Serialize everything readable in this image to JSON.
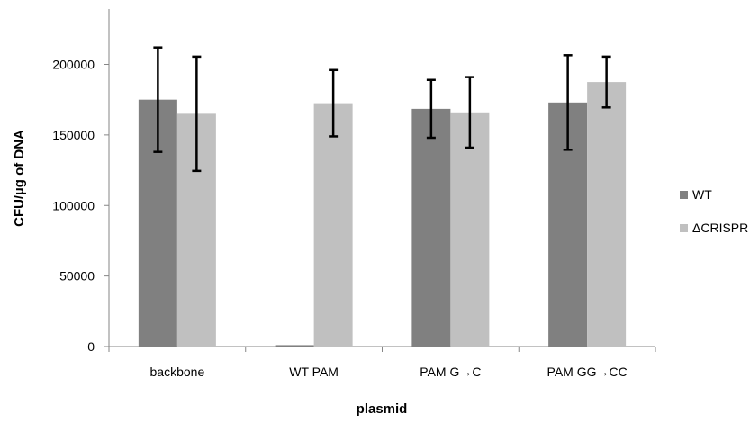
{
  "chart_data": {
    "type": "bar",
    "title": "",
    "xlabel": "plasmid",
    "ylabel": "CFU/µg of DNA",
    "categories": [
      "backbone",
      "WT PAM",
      "PAM G→C",
      "PAM GG→CC"
    ],
    "series": [
      {
        "name": "WT",
        "color": "#808080",
        "values": [
          175000,
          1000,
          168500,
          173000
        ],
        "error": [
          37000,
          0,
          20500,
          33500
        ]
      },
      {
        "name": "ΔCRISPR",
        "color": "#c0c0c0",
        "values": [
          165000,
          172500,
          166000,
          187500
        ],
        "error": [
          40500,
          23500,
          25000,
          18000
        ]
      }
    ],
    "ylim": [
      0,
      250000
    ],
    "yticks": [
      0,
      50000,
      100000,
      150000,
      200000
    ],
    "ytick_labels": [
      "0",
      "50000",
      "100000",
      "150000",
      "200000"
    ],
    "grid": false,
    "legend_position": "right"
  }
}
